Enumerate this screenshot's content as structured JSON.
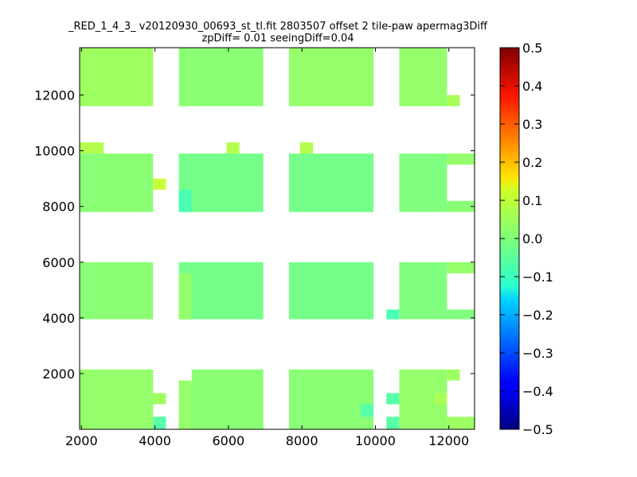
{
  "chart_data": {
    "type": "heatmap",
    "title_line1": "_RED_1_4_3_ v20120930_00693_st_tl.fit 2803507 offset 2 tile-paw apermag3Diff",
    "title_line2": "zpDiff= 0.01 seeingDiff=0.04",
    "xlim": [
      1950,
      12700
    ],
    "ylim": [
      0,
      13700
    ],
    "x_ticks": [
      2000,
      4000,
      6000,
      8000,
      10000,
      12000
    ],
    "y_ticks": [
      2000,
      4000,
      6000,
      8000,
      10000,
      12000
    ],
    "colorbar": {
      "colormap": "jet",
      "range": [
        -0.5,
        0.5
      ],
      "ticks": [
        0.5,
        0.4,
        0.3,
        0.2,
        0.1,
        0.0,
        -0.1,
        -0.2,
        -0.3,
        -0.4,
        -0.5
      ],
      "tick_labels": [
        "0.5",
        "0.4",
        "0.3",
        "0.2",
        "0.1",
        "0.0",
        "−0.1",
        "−0.2",
        "−0.3",
        "−0.4",
        "−0.5"
      ]
    },
    "tiles": [
      {
        "x0": 1950,
        "x1": 3950,
        "y0": 11600,
        "y1": 13700,
        "value": 0.03
      },
      {
        "x0": 4650,
        "x1": 6950,
        "y0": 11600,
        "y1": 13700,
        "value": 0.01
      },
      {
        "x0": 7650,
        "x1": 9950,
        "y0": 11600,
        "y1": 13700,
        "value": 0.02
      },
      {
        "x0": 10650,
        "x1": 11950,
        "y0": 11600,
        "y1": 13700,
        "value": 0.02
      },
      {
        "x0": 11950,
        "x1": 12300,
        "y0": 11600,
        "y1": 12000,
        "value": 0.04
      },
      {
        "x0": 1950,
        "x1": 2600,
        "y0": 9900,
        "y1": 10300,
        "value": 0.05
      },
      {
        "x0": 5950,
        "x1": 6300,
        "y0": 9900,
        "y1": 10300,
        "value": 0.05
      },
      {
        "x0": 7950,
        "x1": 8300,
        "y0": 9900,
        "y1": 10300,
        "value": 0.05
      },
      {
        "x0": 1950,
        "x1": 3950,
        "y0": 7800,
        "y1": 9900,
        "value": 0.01
      },
      {
        "x0": 3950,
        "x1": 4300,
        "y0": 8600,
        "y1": 9000,
        "value": 0.07
      },
      {
        "x0": 4650,
        "x1": 6950,
        "y0": 7800,
        "y1": 9900,
        "value": -0.01
      },
      {
        "x0": 4650,
        "x1": 5000,
        "y0": 7800,
        "y1": 8600,
        "value": -0.05
      },
      {
        "x0": 7650,
        "x1": 9950,
        "y0": 7800,
        "y1": 9900,
        "value": -0.01
      },
      {
        "x0": 10650,
        "x1": 11950,
        "y0": 7800,
        "y1": 9900,
        "value": 0.0
      },
      {
        "x0": 11950,
        "x1": 12700,
        "y0": 9500,
        "y1": 9900,
        "value": 0.02
      },
      {
        "x0": 11950,
        "x1": 12700,
        "y0": 7800,
        "y1": 8200,
        "value": 0.01
      },
      {
        "x0": 1950,
        "x1": 3950,
        "y0": 3950,
        "y1": 6000,
        "value": 0.01
      },
      {
        "x0": 4650,
        "x1": 6950,
        "y0": 3950,
        "y1": 6000,
        "value": -0.01
      },
      {
        "x0": 4650,
        "x1": 5000,
        "y0": 3950,
        "y1": 5600,
        "value": 0.02
      },
      {
        "x0": 7650,
        "x1": 9950,
        "y0": 3950,
        "y1": 6000,
        "value": -0.01
      },
      {
        "x0": 10650,
        "x1": 11950,
        "y0": 3950,
        "y1": 6000,
        "value": 0.0
      },
      {
        "x0": 11950,
        "x1": 12700,
        "y0": 5600,
        "y1": 6000,
        "value": 0.02
      },
      {
        "x0": 11950,
        "x1": 12700,
        "y0": 3950,
        "y1": 4300,
        "value": 0.0
      },
      {
        "x0": 10300,
        "x1": 10650,
        "y0": 3950,
        "y1": 4300,
        "value": -0.05
      },
      {
        "x0": 1950,
        "x1": 3950,
        "y0": 0,
        "y1": 2150,
        "value": 0.02
      },
      {
        "x0": 3950,
        "x1": 4300,
        "y0": 900,
        "y1": 1300,
        "value": 0.03
      },
      {
        "x0": 3950,
        "x1": 4300,
        "y0": 0,
        "y1": 450,
        "value": -0.04
      },
      {
        "x0": 4650,
        "x1": 5000,
        "y0": 0,
        "y1": 1750,
        "value": 0.02
      },
      {
        "x0": 5000,
        "x1": 6950,
        "y0": 0,
        "y1": 2150,
        "value": 0.01
      },
      {
        "x0": 7650,
        "x1": 9950,
        "y0": 0,
        "y1": 2150,
        "value": 0.01
      },
      {
        "x0": 9600,
        "x1": 9950,
        "y0": 450,
        "y1": 900,
        "value": -0.04
      },
      {
        "x0": 10300,
        "x1": 10650,
        "y0": 900,
        "y1": 1300,
        "value": -0.04
      },
      {
        "x0": 10300,
        "x1": 10650,
        "y0": 0,
        "y1": 450,
        "value": -0.04
      },
      {
        "x0": 10650,
        "x1": 11950,
        "y0": 0,
        "y1": 2150,
        "value": 0.02
      },
      {
        "x0": 11950,
        "x1": 12300,
        "y0": 1750,
        "y1": 2150,
        "value": 0.03
      },
      {
        "x0": 11600,
        "x1": 11950,
        "y0": 900,
        "y1": 1300,
        "value": 0.04
      },
      {
        "x0": 11950,
        "x1": 12700,
        "y0": 0,
        "y1": 450,
        "value": 0.03
      }
    ]
  }
}
